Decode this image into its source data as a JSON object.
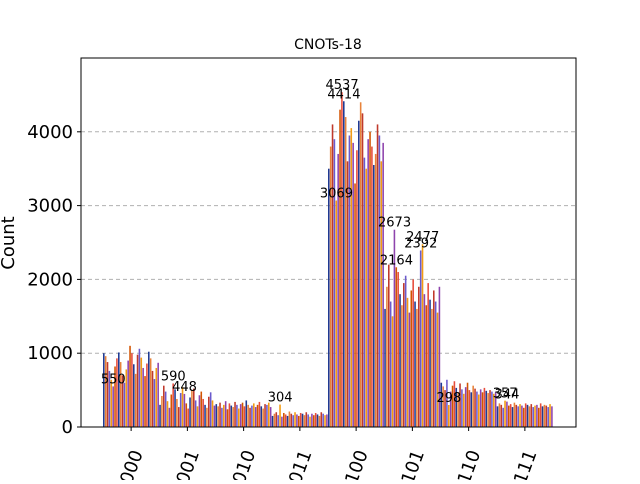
{
  "chart_data": {
    "type": "bar",
    "title": "CNOTs-18",
    "xlabel": "",
    "ylabel": "Count",
    "ylim": [
      0,
      5000
    ],
    "yticks": [
      0,
      1000,
      2000,
      3000,
      4000
    ],
    "categories": [
      "000",
      "001",
      "010",
      "011",
      "100",
      "101",
      "110",
      "111"
    ],
    "grid": "y-dashed",
    "bar_colors": [
      "#1f3a93",
      "#e8833a",
      "#c0392b",
      "#6a5acd",
      "#f39c12",
      "#8e44ad",
      "#d35400",
      "#e74c3c"
    ],
    "approx_group_values": {
      "000": [
        1000,
        960,
        880,
        760,
        640,
        550,
        820,
        930,
        1010,
        880,
        700,
        600,
        780,
        900,
        1100,
        1000,
        850,
        720,
        980,
        1060,
        940,
        800,
        690,
        860,
        1020,
        930,
        760,
        650,
        800,
        870
      ],
      "001": [
        300,
        420,
        560,
        480,
        350,
        260,
        440,
        590,
        510,
        380,
        270,
        460,
        540,
        448,
        320,
        250,
        400,
        500,
        520,
        360,
        280,
        430,
        480,
        380,
        300,
        260,
        410,
        470,
        360,
        290
      ],
      "010": [
        310,
        280,
        330,
        260,
        300,
        350,
        240,
        320,
        290,
        270,
        340,
        300,
        250,
        310,
        330,
        280,
        360,
        300,
        260,
        290,
        320,
        270,
        300,
        340,
        280,
        250,
        310,
        300,
        330,
        270
      ],
      "011": [
        150,
        180,
        200,
        160,
        304,
        140,
        190,
        170,
        150,
        210,
        180,
        160,
        200,
        170,
        150,
        190,
        180,
        160,
        200,
        170,
        140,
        180,
        160,
        190,
        170,
        150,
        200,
        180,
        160,
        170
      ],
      "100": [
        3500,
        3800,
        4100,
        3900,
        3069,
        3700,
        4300,
        4537,
        4414,
        4200,
        3600,
        3950,
        4050,
        3850,
        3300,
        3750,
        4150,
        4400,
        4250,
        3650,
        3500,
        3900,
        4000,
        3800,
        3550,
        3700,
        4100,
        3950,
        3600,
        3850
      ],
      "101": [
        1600,
        1900,
        2200,
        1700,
        1500,
        2673,
        2164,
        2100,
        1800,
        1650,
        1950,
        2050,
        1750,
        1550,
        1850,
        2000,
        1700,
        1600,
        1900,
        2392,
        2477,
        1800,
        1650,
        1950,
        1725,
        1600,
        1850,
        1700,
        1550,
        1900
      ],
      "110": [
        600,
        550,
        500,
        640,
        298,
        480,
        560,
        620,
        530,
        460,
        590,
        510,
        450,
        540,
        600,
        500,
        470,
        560,
        520,
        480,
        440,
        510,
        470,
        530,
        490,
        460,
        500,
        480,
        450,
        470
      ],
      "111": [
        280,
        320,
        300,
        260,
        357,
        344,
        290,
        310,
        270,
        330,
        300,
        280,
        310,
        290,
        260,
        320,
        300,
        280,
        310,
        270,
        290,
        300,
        260,
        320,
        280,
        300,
        290,
        270,
        310,
        280
      ]
    },
    "labels": [
      {
        "text": "4537"
      },
      {
        "text": "4414"
      },
      {
        "text": "3069"
      },
      {
        "text": "2673"
      },
      {
        "text": "2477"
      },
      {
        "text": "2392"
      },
      {
        "text": "2164"
      },
      {
        "text": "590"
      },
      {
        "text": "448"
      },
      {
        "text": "304"
      },
      {
        "text": "298"
      },
      {
        "text": "357"
      },
      {
        "text": "344"
      },
      {
        "text": "550"
      }
    ]
  }
}
